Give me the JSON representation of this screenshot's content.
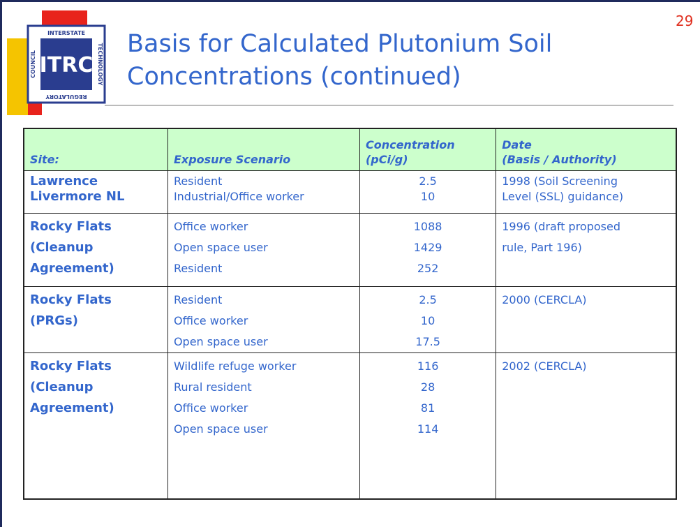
{
  "page_number": "29",
  "logo": {
    "main": "ITRC",
    "top": "INTERSTATE",
    "right": "TECHNOLOGY",
    "bottom": "REGULATORY",
    "left": "COUNCIL"
  },
  "header": {
    "title_lines": [
      "Basis for Calculated Plutonium Soil",
      "Concentrations (continued)"
    ]
  },
  "table": {
    "columns": [
      [
        "Site:"
      ],
      [
        "Exposure Scenario"
      ],
      [
        "Concentration",
        "(pCi/g)"
      ],
      [
        "Date",
        "(Basis / Authority)"
      ]
    ],
    "rows": [
      {
        "site": [
          "Lawrence",
          "Livermore NL"
        ],
        "scenarios": [
          "Resident",
          "Industrial/Office worker"
        ],
        "concentrations": [
          2.5,
          10
        ],
        "date": [
          "1998 (Soil Screening",
          "Level (SSL) guidance)"
        ]
      },
      {
        "site": [
          "Rocky Flats",
          "(Cleanup",
          "Agreement)"
        ],
        "scenarios": [
          "Office worker",
          "Open space user",
          "Resident"
        ],
        "concentrations": [
          1088,
          1429,
          252
        ],
        "date": [
          "1996 (draft proposed",
          "rule, Part 196)"
        ]
      },
      {
        "site": [
          "Rocky Flats",
          "(PRGs)"
        ],
        "scenarios": [
          "Resident",
          "Office worker",
          "Open space user"
        ],
        "concentrations": [
          2.5,
          10,
          17.5
        ],
        "date": [
          "2000 (CERCLA)"
        ]
      },
      {
        "site": [
          "Rocky Flats",
          "(Cleanup",
          "Agreement)"
        ],
        "scenarios": [
          "Wildlife refuge worker",
          "Rural resident",
          "Office worker",
          "Open space user"
        ],
        "concentrations": [
          116,
          28,
          81,
          114
        ],
        "date": [
          "2002 (CERCLA)"
        ]
      }
    ]
  }
}
